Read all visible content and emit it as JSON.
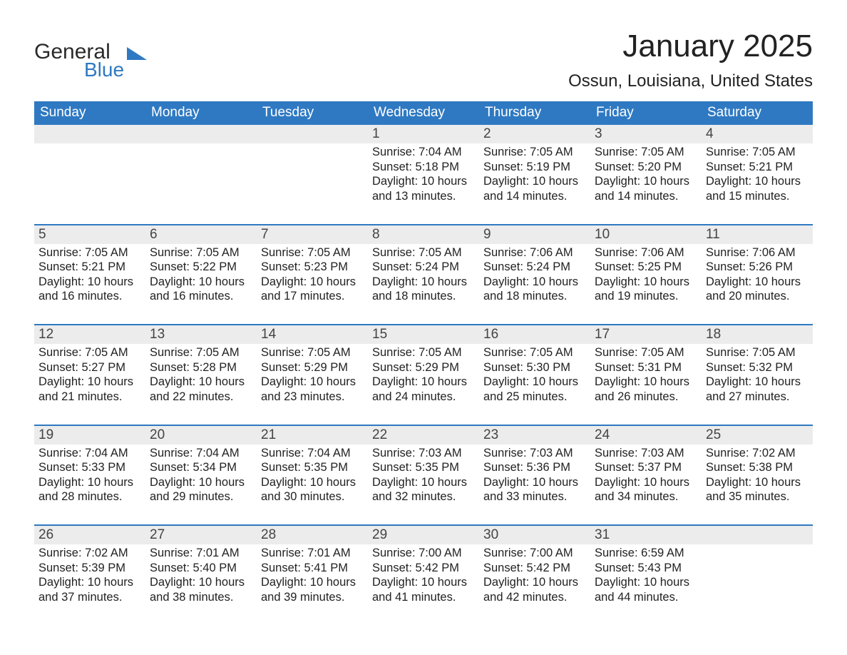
{
  "logo": {
    "word1": "General",
    "word2": "Blue"
  },
  "title": "January 2025",
  "location": "Ossun, Louisiana, United States",
  "colors": {
    "header_bg": "#2f79c2",
    "header_text": "#ffffff",
    "daynum_bg": "#ececec",
    "body_bg": "#ffffff",
    "week_divider": "#2f79c2",
    "text": "#222222",
    "logo_accent": "#2f79c2"
  },
  "typography": {
    "title_fontsize": 44,
    "location_fontsize": 24,
    "dow_fontsize": 19,
    "daynum_fontsize": 19,
    "cell_fontsize": 16.5
  },
  "layout": {
    "columns": 7,
    "rows": 5
  },
  "day_headers": [
    "Sunday",
    "Monday",
    "Tuesday",
    "Wednesday",
    "Thursday",
    "Friday",
    "Saturday"
  ],
  "weeks": [
    [
      null,
      null,
      null,
      {
        "n": "1",
        "sunrise": "7:04 AM",
        "sunset": "5:18 PM",
        "dl1": "Daylight: 10 hours",
        "dl2": "and 13 minutes."
      },
      {
        "n": "2",
        "sunrise": "7:05 AM",
        "sunset": "5:19 PM",
        "dl1": "Daylight: 10 hours",
        "dl2": "and 14 minutes."
      },
      {
        "n": "3",
        "sunrise": "7:05 AM",
        "sunset": "5:20 PM",
        "dl1": "Daylight: 10 hours",
        "dl2": "and 14 minutes."
      },
      {
        "n": "4",
        "sunrise": "7:05 AM",
        "sunset": "5:21 PM",
        "dl1": "Daylight: 10 hours",
        "dl2": "and 15 minutes."
      }
    ],
    [
      {
        "n": "5",
        "sunrise": "7:05 AM",
        "sunset": "5:21 PM",
        "dl1": "Daylight: 10 hours",
        "dl2": "and 16 minutes."
      },
      {
        "n": "6",
        "sunrise": "7:05 AM",
        "sunset": "5:22 PM",
        "dl1": "Daylight: 10 hours",
        "dl2": "and 16 minutes."
      },
      {
        "n": "7",
        "sunrise": "7:05 AM",
        "sunset": "5:23 PM",
        "dl1": "Daylight: 10 hours",
        "dl2": "and 17 minutes."
      },
      {
        "n": "8",
        "sunrise": "7:05 AM",
        "sunset": "5:24 PM",
        "dl1": "Daylight: 10 hours",
        "dl2": "and 18 minutes."
      },
      {
        "n": "9",
        "sunrise": "7:06 AM",
        "sunset": "5:24 PM",
        "dl1": "Daylight: 10 hours",
        "dl2": "and 18 minutes."
      },
      {
        "n": "10",
        "sunrise": "7:06 AM",
        "sunset": "5:25 PM",
        "dl1": "Daylight: 10 hours",
        "dl2": "and 19 minutes."
      },
      {
        "n": "11",
        "sunrise": "7:06 AM",
        "sunset": "5:26 PM",
        "dl1": "Daylight: 10 hours",
        "dl2": "and 20 minutes."
      }
    ],
    [
      {
        "n": "12",
        "sunrise": "7:05 AM",
        "sunset": "5:27 PM",
        "dl1": "Daylight: 10 hours",
        "dl2": "and 21 minutes."
      },
      {
        "n": "13",
        "sunrise": "7:05 AM",
        "sunset": "5:28 PM",
        "dl1": "Daylight: 10 hours",
        "dl2": "and 22 minutes."
      },
      {
        "n": "14",
        "sunrise": "7:05 AM",
        "sunset": "5:29 PM",
        "dl1": "Daylight: 10 hours",
        "dl2": "and 23 minutes."
      },
      {
        "n": "15",
        "sunrise": "7:05 AM",
        "sunset": "5:29 PM",
        "dl1": "Daylight: 10 hours",
        "dl2": "and 24 minutes."
      },
      {
        "n": "16",
        "sunrise": "7:05 AM",
        "sunset": "5:30 PM",
        "dl1": "Daylight: 10 hours",
        "dl2": "and 25 minutes."
      },
      {
        "n": "17",
        "sunrise": "7:05 AM",
        "sunset": "5:31 PM",
        "dl1": "Daylight: 10 hours",
        "dl2": "and 26 minutes."
      },
      {
        "n": "18",
        "sunrise": "7:05 AM",
        "sunset": "5:32 PM",
        "dl1": "Daylight: 10 hours",
        "dl2": "and 27 minutes."
      }
    ],
    [
      {
        "n": "19",
        "sunrise": "7:04 AM",
        "sunset": "5:33 PM",
        "dl1": "Daylight: 10 hours",
        "dl2": "and 28 minutes."
      },
      {
        "n": "20",
        "sunrise": "7:04 AM",
        "sunset": "5:34 PM",
        "dl1": "Daylight: 10 hours",
        "dl2": "and 29 minutes."
      },
      {
        "n": "21",
        "sunrise": "7:04 AM",
        "sunset": "5:35 PM",
        "dl1": "Daylight: 10 hours",
        "dl2": "and 30 minutes."
      },
      {
        "n": "22",
        "sunrise": "7:03 AM",
        "sunset": "5:35 PM",
        "dl1": "Daylight: 10 hours",
        "dl2": "and 32 minutes."
      },
      {
        "n": "23",
        "sunrise": "7:03 AM",
        "sunset": "5:36 PM",
        "dl1": "Daylight: 10 hours",
        "dl2": "and 33 minutes."
      },
      {
        "n": "24",
        "sunrise": "7:03 AM",
        "sunset": "5:37 PM",
        "dl1": "Daylight: 10 hours",
        "dl2": "and 34 minutes."
      },
      {
        "n": "25",
        "sunrise": "7:02 AM",
        "sunset": "5:38 PM",
        "dl1": "Daylight: 10 hours",
        "dl2": "and 35 minutes."
      }
    ],
    [
      {
        "n": "26",
        "sunrise": "7:02 AM",
        "sunset": "5:39 PM",
        "dl1": "Daylight: 10 hours",
        "dl2": "and 37 minutes."
      },
      {
        "n": "27",
        "sunrise": "7:01 AM",
        "sunset": "5:40 PM",
        "dl1": "Daylight: 10 hours",
        "dl2": "and 38 minutes."
      },
      {
        "n": "28",
        "sunrise": "7:01 AM",
        "sunset": "5:41 PM",
        "dl1": "Daylight: 10 hours",
        "dl2": "and 39 minutes."
      },
      {
        "n": "29",
        "sunrise": "7:00 AM",
        "sunset": "5:42 PM",
        "dl1": "Daylight: 10 hours",
        "dl2": "and 41 minutes."
      },
      {
        "n": "30",
        "sunrise": "7:00 AM",
        "sunset": "5:42 PM",
        "dl1": "Daylight: 10 hours",
        "dl2": "and 42 minutes."
      },
      {
        "n": "31",
        "sunrise": "6:59 AM",
        "sunset": "5:43 PM",
        "dl1": "Daylight: 10 hours",
        "dl2": "and 44 minutes."
      },
      null
    ]
  ],
  "labels": {
    "sunrise_prefix": "Sunrise: ",
    "sunset_prefix": "Sunset: "
  }
}
